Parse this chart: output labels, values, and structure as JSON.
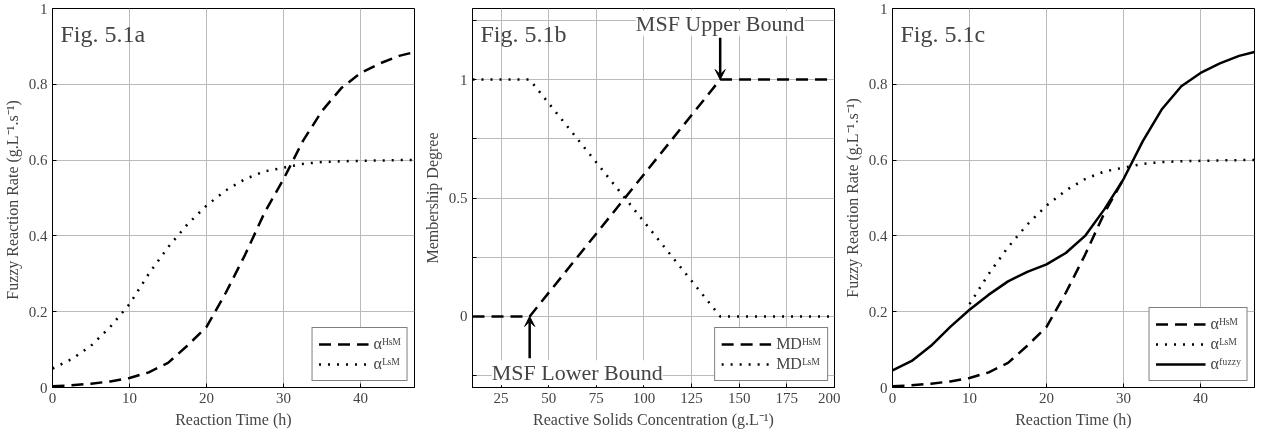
{
  "chart_data": [
    {
      "type": "line",
      "title": "Fig. 5.1a",
      "xlabel": "Reaction Time (h)",
      "ylabel": "Fuzzy Reaction Rate  (g.L⁻¹.s⁻¹)",
      "xlim": [
        0,
        47
      ],
      "ylim": [
        0,
        1
      ],
      "xticks": [
        0,
        10,
        20,
        30,
        40
      ],
      "yticks": [
        0,
        0.2,
        0.4,
        0.6,
        0.8,
        1
      ],
      "grid": true,
      "legend": "bottom right",
      "x": [
        0,
        2.5,
        5,
        7.5,
        10,
        12.5,
        15,
        17.5,
        20,
        22.5,
        25,
        27.5,
        30,
        32.5,
        35,
        37.5,
        40,
        42.5,
        45,
        47
      ],
      "series": [
        {
          "name": "αᴴˢᴹ",
          "color": "#000000",
          "line_style": "dashed",
          "values": [
            0.003,
            0.006,
            0.01,
            0.016,
            0.025,
            0.04,
            0.065,
            0.11,
            0.16,
            0.25,
            0.35,
            0.46,
            0.55,
            0.65,
            0.73,
            0.79,
            0.83,
            0.855,
            0.875,
            0.885
          ]
        },
        {
          "name": "αᴸˢᴹ",
          "color": "#000000",
          "line_style": "dotted",
          "values": [
            0.05,
            0.075,
            0.11,
            0.16,
            0.22,
            0.3,
            0.37,
            0.43,
            0.48,
            0.52,
            0.55,
            0.57,
            0.58,
            0.59,
            0.595,
            0.597,
            0.598,
            0.599,
            0.6,
            0.6
          ]
        }
      ]
    },
    {
      "type": "line",
      "title": "Fig. 5.1b",
      "xlabel": "Reactive Solids Concentration (g.L⁻¹)",
      "ylabel": "Membership Degree",
      "xlim": [
        10,
        200
      ],
      "ylim": [
        -0.3,
        1.3
      ],
      "xticks": [
        25,
        50,
        75,
        100,
        125,
        150,
        175,
        200
      ],
      "yticks": [
        {
          "value": -0.25,
          "label": null
        },
        0,
        {
          "value": 0.25,
          "label": null
        },
        0.5,
        {
          "value": 0.75,
          "label": null
        },
        1,
        {
          "value": 1.25,
          "label": null
        }
      ],
      "grid": true,
      "legend": "bottom right",
      "x": [
        10,
        40,
        140,
        200
      ],
      "series": [
        {
          "name": "MDᴴˢᴹ",
          "color": "#000000",
          "line_style": "dashed",
          "values": [
            0,
            0,
            1,
            1
          ]
        },
        {
          "name": "MDᴸˢᴹ",
          "color": "#000000",
          "line_style": "dotted",
          "values": [
            1,
            1,
            0,
            0
          ]
        }
      ],
      "annotations": [
        {
          "text": "MSF Upper Bound",
          "x": 140,
          "y": 1
        },
        {
          "text": "MSF Lower Bound",
          "x": 40,
          "y": 0
        }
      ]
    },
    {
      "type": "line",
      "title": "Fig. 5.1c",
      "xlabel": "Reaction Time (h)",
      "ylabel": "Fuzzy Reaction Rate (g.L⁻¹.s⁻¹)",
      "xlim": [
        0,
        47
      ],
      "ylim": [
        0,
        1
      ],
      "xticks": [
        0,
        10,
        20,
        30,
        40
      ],
      "yticks": [
        0,
        0.2,
        0.4,
        0.6,
        0.8,
        1
      ],
      "grid": true,
      "legend": "bottom right",
      "x": [
        0,
        2.5,
        5,
        7.5,
        10,
        12.5,
        15,
        17.5,
        20,
        22.5,
        25,
        27.5,
        30,
        32.5,
        35,
        37.5,
        40,
        42.5,
        45,
        47
      ],
      "series": [
        {
          "name": "αᴴˢᴹ",
          "color": "#000000",
          "line_style": "dashed",
          "values": [
            0.003,
            0.006,
            0.01,
            0.016,
            0.025,
            0.04,
            0.065,
            0.11,
            0.16,
            0.25,
            0.35,
            0.46,
            0.55,
            null,
            null,
            null,
            null,
            null,
            null,
            null
          ]
        },
        {
          "name": "αᴸˢᴹ",
          "color": "#000000",
          "line_style": "dotted",
          "values": [
            null,
            null,
            null,
            null,
            0.22,
            0.3,
            0.37,
            0.43,
            0.48,
            0.52,
            0.55,
            0.57,
            0.58,
            0.59,
            0.595,
            0.597,
            0.598,
            0.599,
            0.6,
            0.6
          ]
        },
        {
          "name": "αᶠᵘᶻᶻʸ",
          "color": "#000000",
          "line_style": "solid",
          "values": [
            0.045,
            0.07,
            0.11,
            0.16,
            0.205,
            0.245,
            0.28,
            0.305,
            0.325,
            0.355,
            0.4,
            0.47,
            0.55,
            0.65,
            0.735,
            0.795,
            0.83,
            0.855,
            0.875,
            0.885
          ]
        }
      ]
    }
  ]
}
